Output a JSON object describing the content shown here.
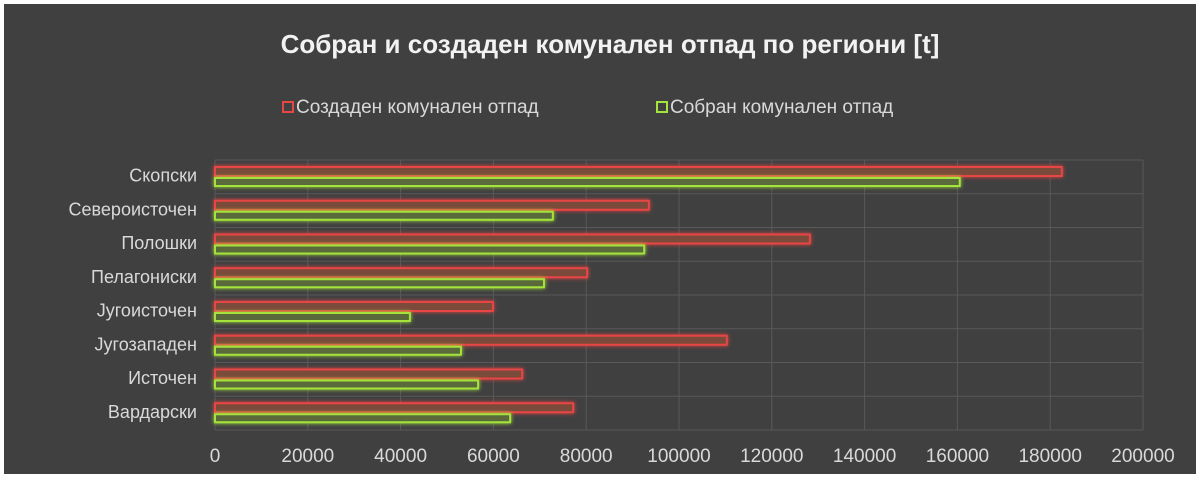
{
  "chart_data": {
    "type": "barh",
    "title": "Собран и создаден комунален отпад по региони [t]",
    "categories": [
      "Скопски",
      "Североисточен",
      "Полошки",
      "Пелагониски",
      "Југоисточен",
      "Југозападен",
      "Источен",
      "Вардарски"
    ],
    "series": [
      {
        "name": "Создаден комунален отпад",
        "color": "#e84545",
        "values": [
          182500,
          93500,
          128200,
          80200,
          59900,
          110300,
          66200,
          77200
        ]
      },
      {
        "name": "Собран комунален отпад",
        "color": "#a4e23c",
        "values": [
          160500,
          72800,
          92500,
          70900,
          42000,
          53000,
          56700,
          63600
        ]
      }
    ],
    "xlim": [
      0,
      200000
    ],
    "xticks": [
      0,
      20000,
      40000,
      60000,
      80000,
      100000,
      120000,
      140000,
      160000,
      180000,
      200000
    ],
    "grid": true,
    "legend": "top"
  }
}
